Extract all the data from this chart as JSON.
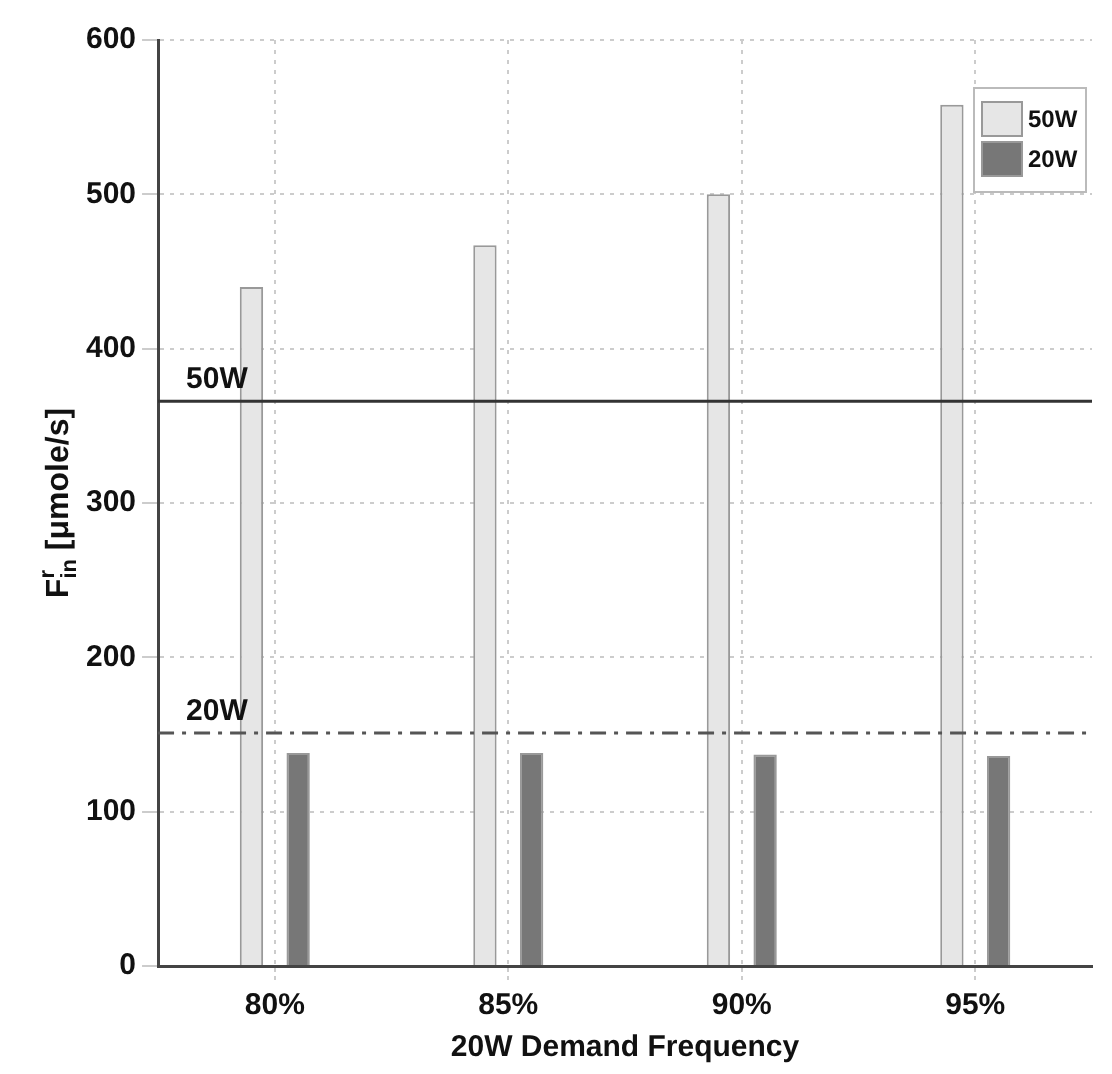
{
  "chart_data": {
    "type": "bar",
    "xlabel": "20W Demand Frequency",
    "ylabel": "F$^{r}$$_{in}$ [μmole/s]",
    "categories": [
      "80%",
      "85%",
      "90%",
      "95%"
    ],
    "series": [
      {
        "name": "50W",
        "color": "#e6e6e6",
        "values": [
          440,
          467,
          500,
          558
        ]
      },
      {
        "name": "20W",
        "color": "#777777",
        "values": [
          138,
          138,
          137,
          136
        ]
      }
    ],
    "ylim": [
      0,
      600
    ],
    "yticks": [
      0,
      100,
      200,
      300,
      400,
      500,
      600
    ],
    "ref_lines": [
      {
        "axis": "y",
        "value": 366,
        "label": "50W",
        "color": "#333333",
        "line_style": "solid"
      },
      {
        "axis": "y",
        "value": 151,
        "label": "20W",
        "color": "#555555",
        "line_style": "dashed"
      }
    ],
    "grid": true,
    "legend": "top right"
  }
}
